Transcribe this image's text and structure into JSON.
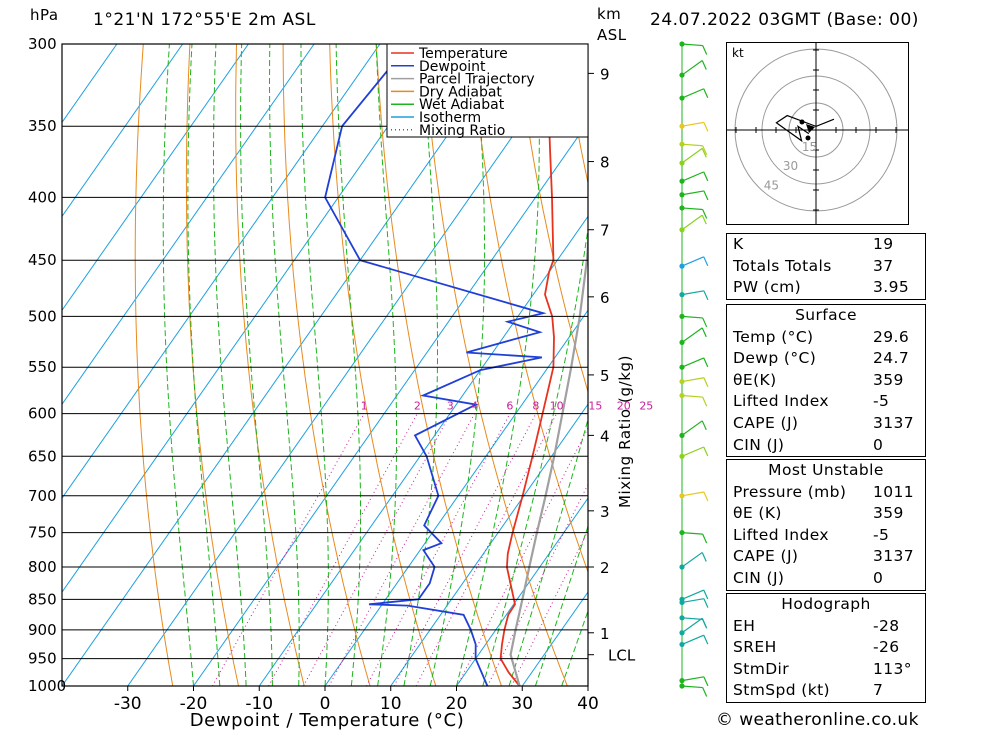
{
  "header": {
    "pressure_unit": "hPa",
    "location": "1°21'N  172°55'E  2m  ASL",
    "height_unit_line1": "km",
    "height_unit_line2": "ASL",
    "datetime": "24.07.2022  03GMT  (Base: 00)"
  },
  "chart_data": {
    "type": "line",
    "subtype": "skew-T log-P diagram",
    "xlabel": "Dewpoint / Temperature (°C)",
    "ylabel": "hPa",
    "y2label": "Mixing Ratio (g/kg)",
    "xlim": [
      -40,
      40
    ],
    "ylim": [
      1000,
      300
    ],
    "pressure_levels": [
      300,
      350,
      400,
      450,
      500,
      550,
      600,
      650,
      700,
      750,
      800,
      850,
      900,
      950,
      1000
    ],
    "x_ticks": [
      -30,
      -20,
      -10,
      0,
      10,
      20,
      30,
      40
    ],
    "height_ticks_km": [
      {
        "label": "9",
        "p": 317
      },
      {
        "label": "8",
        "p": 374
      },
      {
        "label": "7",
        "p": 425
      },
      {
        "label": "6",
        "p": 482
      },
      {
        "label": "5",
        "p": 558
      },
      {
        "label": "4",
        "p": 625
      },
      {
        "label": "3",
        "p": 720
      },
      {
        "label": "2",
        "p": 800
      },
      {
        "label": "1",
        "p": 905
      },
      {
        "label": "LCL",
        "p": 943
      }
    ],
    "mixing_ratio_labels": [
      "1",
      "2",
      "3",
      "4",
      "6",
      "8",
      "10",
      "15",
      "20",
      "25"
    ],
    "mixing_ratio_values": [
      1,
      2,
      3,
      4,
      6,
      8,
      10,
      15,
      20,
      25
    ],
    "legend": {
      "placement": "top",
      "items": [
        {
          "label": "Temperature",
          "color": "#e8321e",
          "style": "solid"
        },
        {
          "label": "Dewpoint",
          "color": "#1f3fd6",
          "style": "solid"
        },
        {
          "label": "Parcel Trajectory",
          "color": "#a0a0a0",
          "style": "solid"
        },
        {
          "label": "Dry Adiabat",
          "color": "#e88a1e",
          "style": "solid"
        },
        {
          "label": "Wet Adiabat",
          "color": "#1eb41e",
          "style": "solid"
        },
        {
          "label": "Isotherm",
          "color": "#1ea0e0",
          "style": "solid"
        },
        {
          "label": "Mixing Ratio",
          "color": "#c81e9a",
          "style": "dotted"
        }
      ]
    },
    "series": [
      {
        "name": "Temperature",
        "color": "#e8321e",
        "points": [
          {
            "p": 1000,
            "t": 29.6
          },
          {
            "p": 975,
            "t": 26.5
          },
          {
            "p": 950,
            "t": 23.8
          },
          {
            "p": 925,
            "t": 22.5
          },
          {
            "p": 900,
            "t": 21.3
          },
          {
            "p": 875,
            "t": 20.3
          },
          {
            "p": 858,
            "t": 20.2
          },
          {
            "p": 850,
            "t": 19.5
          },
          {
            "p": 800,
            "t": 15.0
          },
          {
            "p": 780,
            "t": 13.7
          },
          {
            "p": 750,
            "t": 12.2
          },
          {
            "p": 700,
            "t": 9.8
          },
          {
            "p": 650,
            "t": 7.1
          },
          {
            "p": 600,
            "t": 4.1
          },
          {
            "p": 550,
            "t": 0.8
          },
          {
            "p": 520,
            "t": -2.3
          },
          {
            "p": 500,
            "t": -4.8
          },
          {
            "p": 480,
            "t": -8.2
          },
          {
            "p": 460,
            "t": -10.0
          },
          {
            "p": 450,
            "t": -10.6
          },
          {
            "p": 400,
            "t": -17.5
          },
          {
            "p": 365,
            "t": -23.0
          },
          {
            "p": 330,
            "t": -29.0
          },
          {
            "p": 300,
            "t": -35.5
          }
        ]
      },
      {
        "name": "Dewpoint",
        "color": "#1f3fd6",
        "points": [
          {
            "p": 1000,
            "t": 24.7
          },
          {
            "p": 950,
            "t": 20.0
          },
          {
            "p": 925,
            "t": 18.5
          },
          {
            "p": 900,
            "t": 16.2
          },
          {
            "p": 875,
            "t": 13.5
          },
          {
            "p": 860,
            "t": 4.0
          },
          {
            "p": 858,
            "t": -2.0
          },
          {
            "p": 850,
            "t": 5.0
          },
          {
            "p": 825,
            "t": 5.0
          },
          {
            "p": 800,
            "t": 4.0
          },
          {
            "p": 775,
            "t": 0.5
          },
          {
            "p": 765,
            "t": 2.5
          },
          {
            "p": 740,
            "t": -2.0
          },
          {
            "p": 700,
            "t": -3.0
          },
          {
            "p": 650,
            "t": -9.0
          },
          {
            "p": 625,
            "t": -13.0
          },
          {
            "p": 590,
            "t": -7.0
          },
          {
            "p": 580,
            "t": -16.0
          },
          {
            "p": 553,
            "t": -10.0
          },
          {
            "p": 540,
            "t": -2.0
          },
          {
            "p": 535,
            "t": -14.0
          },
          {
            "p": 515,
            "t": -5.0
          },
          {
            "p": 505,
            "t": -11.0
          },
          {
            "p": 497,
            "t": -6.5
          },
          {
            "p": 450,
            "t": -40.0
          },
          {
            "p": 400,
            "t": -52.0
          },
          {
            "p": 350,
            "t": -57.0
          },
          {
            "p": 315,
            "t": -56.0
          },
          {
            "p": 300,
            "t": -48.0
          }
        ]
      },
      {
        "name": "Parcel Trajectory",
        "color": "#a0a0a0",
        "points": [
          {
            "p": 1000,
            "t": 29.6
          },
          {
            "p": 943,
            "t": 24.9
          },
          {
            "p": 900,
            "t": 23.0
          },
          {
            "p": 850,
            "t": 20.8
          },
          {
            "p": 800,
            "t": 18.4
          },
          {
            "p": 750,
            "t": 15.9
          },
          {
            "p": 700,
            "t": 13.3
          },
          {
            "p": 650,
            "t": 10.4
          },
          {
            "p": 600,
            "t": 7.1
          },
          {
            "p": 550,
            "t": 3.5
          },
          {
            "p": 500,
            "t": -0.6
          },
          {
            "p": 450,
            "t": -5.5
          },
          {
            "p": 400,
            "t": -11.5
          },
          {
            "p": 365,
            "t": -16.5
          }
        ]
      }
    ],
    "winds": [
      {
        "p": 1000,
        "color": "#1eb41e"
      },
      {
        "p": 990,
        "color": "#1eb41e"
      },
      {
        "p": 925,
        "color": "#11a8a0"
      },
      {
        "p": 905,
        "color": "#11a8a0"
      },
      {
        "p": 880,
        "color": "#11a8a0"
      },
      {
        "p": 855,
        "color": "#11a8a0"
      },
      {
        "p": 850,
        "color": "#11a8a0"
      },
      {
        "p": 800,
        "color": "#11a8a0"
      },
      {
        "p": 750,
        "color": "#1eb41e"
      },
      {
        "p": 700,
        "color": "#e8c81e"
      },
      {
        "p": 650,
        "color": "#8ad21e"
      },
      {
        "p": 625,
        "color": "#1eb41e"
      },
      {
        "p": 580,
        "color": "#b4d21e"
      },
      {
        "p": 565,
        "color": "#b4d21e"
      },
      {
        "p": 550,
        "color": "#1eb41e"
      },
      {
        "p": 525,
        "color": "#1eb41e"
      },
      {
        "p": 500,
        "color": "#1eb41e"
      },
      {
        "p": 480,
        "color": "#11a8a0"
      },
      {
        "p": 455,
        "color": "#1ea0e0"
      },
      {
        "p": 425,
        "color": "#8ad21e"
      },
      {
        "p": 408,
        "color": "#1eb41e"
      },
      {
        "p": 398,
        "color": "#1eb41e"
      },
      {
        "p": 388,
        "color": "#1eb41e"
      },
      {
        "p": 375,
        "color": "#8ad21e"
      },
      {
        "p": 362,
        "color": "#b4d21e"
      },
      {
        "p": 350,
        "color": "#e8c81e"
      },
      {
        "p": 332,
        "color": "#1eb41e"
      },
      {
        "p": 318,
        "color": "#1eb41e"
      },
      {
        "p": 300,
        "color": "#1eb41e"
      }
    ]
  },
  "hodograph": {
    "unit_label": "kt",
    "ring_labels": [
      "15",
      "30",
      "45"
    ],
    "points": [
      {
        "u": 5,
        "v": 3
      },
      {
        "u": 0,
        "v": 1
      },
      {
        "u": -8,
        "v": 4
      },
      {
        "u": -11,
        "v": 2
      },
      {
        "u": -4,
        "v": -3
      },
      {
        "u": -5,
        "v": 1
      },
      {
        "u": -2,
        "v": -1
      }
    ]
  },
  "indices_table": {
    "rows": [
      {
        "label": "K",
        "value": "19"
      },
      {
        "label": "Totals Totals",
        "value": "37"
      },
      {
        "label": "PW (cm)",
        "value": "3.95"
      }
    ]
  },
  "surface_table": {
    "title": "Surface",
    "rows": [
      {
        "label": "Temp (°C)",
        "value": "29.6"
      },
      {
        "label": "Dewp (°C)",
        "value": "24.7"
      },
      {
        "label": "θE(K)",
        "value": "359"
      },
      {
        "label": "Lifted Index",
        "value": "-5"
      },
      {
        "label": "CAPE (J)",
        "value": "3137"
      },
      {
        "label": "CIN (J)",
        "value": "0"
      }
    ]
  },
  "most_unstable_table": {
    "title": "Most Unstable",
    "rows": [
      {
        "label": "Pressure (mb)",
        "value": "1011"
      },
      {
        "label": "θE (K)",
        "value": "359"
      },
      {
        "label": "Lifted Index",
        "value": "-5"
      },
      {
        "label": "CAPE (J)",
        "value": "3137"
      },
      {
        "label": "CIN (J)",
        "value": "0"
      }
    ]
  },
  "hodograph_table": {
    "title": "Hodograph",
    "rows": [
      {
        "label": "EH",
        "value": "-28"
      },
      {
        "label": "SREH",
        "value": "-26"
      },
      {
        "label": "StmDir",
        "value": "113°"
      },
      {
        "label": "StmSpd (kt)",
        "value": "7"
      }
    ]
  },
  "footer": {
    "copyright": "© weatheronline.co.uk"
  }
}
